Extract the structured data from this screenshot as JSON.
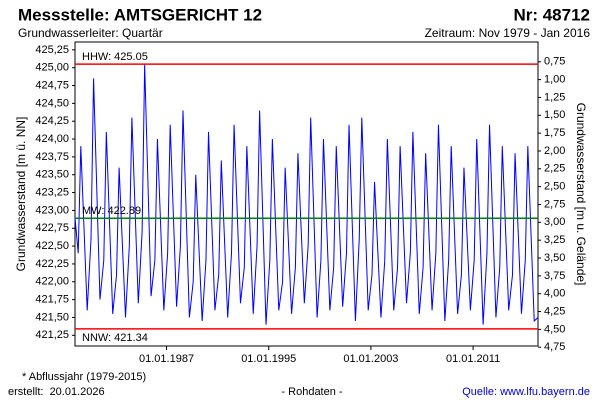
{
  "chart_data": {
    "type": "line",
    "title": "Messstelle: AMTSGERICHT 12",
    "number_label": "Nr: 48712",
    "subtitle": "Grundwasserleiter: Quartär",
    "period": "Zeitraum: Nov 1979 - Jan 2016",
    "y_label": "Grundwasserstand [m ü. NN]",
    "y2_label": "Grundwasserstand [m u. Gelände]",
    "footnote": "* Abflussjahr (1979-2015)",
    "created": "erstellt:  20.01.2026",
    "data_note": "- Rohdaten -",
    "source": "Quelle: www.lfu.bayern.de",
    "xlim": [
      "1979-11-01",
      "2016-01-31"
    ],
    "xticks": [
      {
        "value": "1987-01-01",
        "label": "01.01.1987"
      },
      {
        "value": "1995-01-01",
        "label": "01.01.1995"
      },
      {
        "value": "2003-01-01",
        "label": "01.01.2003"
      },
      {
        "value": "2011-01-01",
        "label": "01.01.2011"
      }
    ],
    "ylim": [
      421.1,
      425.36
    ],
    "yticks": [
      {
        "value": 421.25,
        "label": "421,25"
      },
      {
        "value": 421.5,
        "label": "421,50"
      },
      {
        "value": 421.75,
        "label": "421,75"
      },
      {
        "value": 422,
        "label": "422,00"
      },
      {
        "value": 422.25,
        "label": "422,25"
      },
      {
        "value": 422.5,
        "label": "422,50"
      },
      {
        "value": 422.75,
        "label": "422,75"
      },
      {
        "value": 423,
        "label": "423,00"
      },
      {
        "value": 423.25,
        "label": "423,25"
      },
      {
        "value": 423.5,
        "label": "423,50"
      },
      {
        "value": 423.75,
        "label": "423,75"
      },
      {
        "value": 424,
        "label": "424,00"
      },
      {
        "value": 424.25,
        "label": "424,25"
      },
      {
        "value": 424.5,
        "label": "424,50"
      },
      {
        "value": 424.75,
        "label": "424,75"
      },
      {
        "value": 425,
        "label": "425,00"
      },
      {
        "value": 425.25,
        "label": "425,25"
      }
    ],
    "y2lim": [
      0.473,
      4.733
    ],
    "y2ticks": [
      {
        "value": 0.75,
        "label": "0,75"
      },
      {
        "value": 1,
        "label": "1,00"
      },
      {
        "value": 1.25,
        "label": "1,25"
      },
      {
        "value": 1.5,
        "label": "1,50"
      },
      {
        "value": 1.75,
        "label": "1,75"
      },
      {
        "value": 2,
        "label": "2,00"
      },
      {
        "value": 2.25,
        "label": "2,25"
      },
      {
        "value": 2.5,
        "label": "2,50"
      },
      {
        "value": 2.75,
        "label": "2,75"
      },
      {
        "value": 3,
        "label": "3,00"
      },
      {
        "value": 3.25,
        "label": "3,25"
      },
      {
        "value": 3.5,
        "label": "3,50"
      },
      {
        "value": 3.75,
        "label": "3,75"
      },
      {
        "value": 4,
        "label": "4,00"
      },
      {
        "value": 4.25,
        "label": "4,25"
      },
      {
        "value": 4.5,
        "label": "4,50"
      },
      {
        "value": 4.75,
        "label": "4,75"
      }
    ],
    "reference_lines": [
      {
        "label": "HHW: 425.05",
        "value": 425.05,
        "color": "#ff0000"
      },
      {
        "label": "MW: 422.89",
        "value": 422.89,
        "color": "#008000"
      },
      {
        "label": "NNW: 421.34",
        "value": 421.34,
        "color": "#ff0000"
      }
    ],
    "grid": false,
    "series": [
      {
        "color": "#0000ff",
        "x": [
          "1979-11-01",
          "1980-02-01",
          "1980-04-15",
          "1980-10-15",
          "1981-02-01",
          "1981-04-15",
          "1981-10-15",
          "1982-02-01",
          "1982-04-15",
          "1982-10-15",
          "1983-02-01",
          "1983-04-15",
          "1983-10-15",
          "1984-02-01",
          "1984-04-15",
          "1984-10-15",
          "1985-02-01",
          "1985-04-15",
          "1985-10-15",
          "1986-02-01",
          "1986-04-15",
          "1986-10-15",
          "1987-02-01",
          "1987-04-15",
          "1987-10-15",
          "1988-02-01",
          "1988-04-15",
          "1988-10-15",
          "1989-02-01",
          "1989-04-15",
          "1989-10-15",
          "1990-02-01",
          "1990-04-15",
          "1990-10-15",
          "1991-02-01",
          "1991-04-15",
          "1991-10-15",
          "1992-02-01",
          "1992-04-15",
          "1992-10-15",
          "1993-02-01",
          "1993-04-15",
          "1993-10-15",
          "1994-02-01",
          "1994-04-15",
          "1994-10-15",
          "1995-02-01",
          "1995-04-15",
          "1995-10-15",
          "1996-02-01",
          "1996-04-15",
          "1996-10-15",
          "1997-02-01",
          "1997-04-15",
          "1997-10-15",
          "1998-02-01",
          "1998-04-15",
          "1998-10-15",
          "1999-02-01",
          "1999-04-15",
          "1999-10-15",
          "2000-02-01",
          "2000-04-15",
          "2000-10-15",
          "2001-02-01",
          "2001-04-15",
          "2001-10-15",
          "2002-02-01",
          "2002-04-15",
          "2002-10-15",
          "2003-02-01",
          "2003-04-15",
          "2003-10-15",
          "2004-02-01",
          "2004-04-15",
          "2004-10-15",
          "2005-02-01",
          "2005-04-15",
          "2005-10-15",
          "2006-02-01",
          "2006-04-15",
          "2006-10-15",
          "2007-02-01",
          "2007-04-15",
          "2007-10-15",
          "2008-02-01",
          "2008-04-15",
          "2008-10-15",
          "2009-02-01",
          "2009-04-15",
          "2009-10-15",
          "2010-02-01",
          "2010-04-15",
          "2010-10-15",
          "2011-02-01",
          "2011-04-15",
          "2011-10-15",
          "2012-02-01",
          "2012-04-15",
          "2012-10-15",
          "2013-02-01",
          "2013-04-15",
          "2013-10-15",
          "2014-02-01",
          "2014-04-15",
          "2014-10-15",
          "2015-02-01",
          "2015-04-15",
          "2015-10-15",
          "2016-01-31"
        ],
        "values": [
          422.9,
          422.4,
          423.9,
          421.6,
          422.6,
          424.85,
          421.75,
          422.3,
          424.1,
          421.55,
          422.1,
          423.6,
          421.5,
          422.5,
          424.3,
          421.7,
          422.7,
          425.05,
          421.8,
          422.3,
          424.0,
          421.6,
          422.4,
          424.2,
          421.65,
          422.5,
          424.4,
          421.5,
          422.0,
          423.5,
          421.45,
          422.3,
          424.1,
          421.6,
          422.1,
          423.7,
          421.5,
          422.4,
          424.2,
          421.7,
          422.2,
          423.9,
          421.55,
          422.5,
          424.4,
          421.4,
          422.3,
          424.0,
          421.6,
          422.0,
          423.6,
          421.55,
          422.2,
          423.8,
          421.7,
          422.5,
          424.3,
          421.5,
          422.3,
          424.0,
          421.6,
          422.2,
          423.9,
          421.65,
          422.4,
          424.2,
          421.45,
          422.6,
          424.3,
          421.6,
          422.1,
          423.4,
          421.5,
          422.3,
          424.0,
          421.6,
          422.2,
          423.9,
          421.7,
          422.4,
          424.1,
          421.55,
          422.2,
          423.8,
          421.6,
          422.4,
          424.2,
          421.45,
          422.3,
          423.9,
          421.55,
          422.1,
          423.6,
          421.6,
          422.3,
          424.0,
          421.4,
          422.4,
          424.2,
          421.5,
          422.2,
          423.9,
          421.6,
          422.1,
          423.8,
          421.55,
          422.3,
          423.9,
          421.45,
          421.5
        ]
      }
    ]
  }
}
